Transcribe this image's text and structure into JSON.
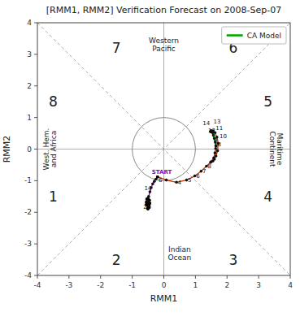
{
  "chart_data": {
    "type": "line",
    "title": "[RMM1, RMM2] Verification Forecast on 2008-Sep-07",
    "x_label": "RMM1",
    "y_label": "RMM2",
    "xlim": [
      -4,
      4
    ],
    "ylim": [
      -4,
      4
    ],
    "xticks": [
      -4,
      -3,
      -2,
      -1,
      0,
      1,
      2,
      3,
      4
    ],
    "yticks": [
      -4,
      -3,
      -2,
      -1,
      0,
      1,
      2,
      3,
      4
    ],
    "grid": false,
    "legend": "upper right",
    "circle_radius": 1.0,
    "series": [
      {
        "type": "scatter",
        "color": "black",
        "marker": "dot",
        "x": [
          -0.5,
          -0.55,
          -0.48,
          -0.52,
          -0.45,
          -0.53,
          -0.47,
          -0.5,
          -0.54,
          -0.46,
          -0.49,
          -0.51,
          -0.44,
          -0.56,
          -0.48,
          -0.52,
          -0.46,
          -0.5,
          -0.53,
          -0.47,
          -0.48,
          -0.5,
          -0.55,
          -0.46,
          -0.52
        ],
        "values": [
          -1.65,
          -1.7,
          -1.6,
          -1.75,
          -1.62,
          -1.68,
          -1.72,
          -1.55,
          -1.58,
          -1.8,
          -1.63,
          -1.67,
          -1.71,
          -1.76,
          -1.82,
          -1.88,
          -1.85,
          -1.9,
          -1.78,
          -1.73,
          -1.69,
          -1.64,
          -1.66,
          -1.74,
          -1.79
        ]
      },
      {
        "type": "line",
        "color": "#9900cc",
        "marker": "dot",
        "x": [
          -0.5,
          -0.48,
          -0.44,
          -0.4,
          -0.35,
          -0.3,
          -0.25,
          -0.2
        ],
        "values": [
          -1.65,
          -1.5,
          -1.35,
          -1.22,
          -1.1,
          -1.02,
          -0.95,
          -0.88
        ]
      },
      {
        "type": "line",
        "color": "#cc3300",
        "marker": "dot",
        "x": [
          -0.2,
          0.08,
          0.4,
          0.72,
          0.98,
          1.18,
          1.35,
          1.48,
          1.58,
          1.62,
          1.64,
          1.65
        ],
        "values": [
          -0.88,
          -0.98,
          -1.05,
          -0.98,
          -0.85,
          -0.7,
          -0.54,
          -0.42,
          -0.28,
          -0.12,
          0.02,
          0.1
        ]
      },
      {
        "type": "line",
        "name": "CA Model",
        "color": "#00aa00",
        "marker": "dot",
        "x": [
          1.65,
          1.63,
          1.6,
          1.57,
          1.54,
          1.51,
          1.49,
          1.48
        ],
        "values": [
          0.1,
          0.22,
          0.34,
          0.44,
          0.52,
          0.57,
          0.58,
          0.55
        ]
      },
      {
        "type": "line",
        "color": "#cc3300",
        "marker": "dot",
        "x": [
          1.48,
          1.5,
          1.56,
          1.62,
          1.68,
          1.72,
          1.7,
          1.65,
          1.6,
          1.55,
          1.5
        ],
        "values": [
          0.55,
          0.58,
          0.58,
          0.52,
          0.38,
          0.18,
          -0.05,
          -0.22,
          -0.32,
          -0.38,
          -0.4
        ]
      },
      {
        "type": "scatter",
        "color": "black",
        "marker": "dot",
        "x": [
          -0.2
        ],
        "values": [
          -0.88
        ]
      }
    ],
    "annotations": [
      {
        "text": "7",
        "x": -1.5,
        "y": 3.2
      },
      {
        "text": "6",
        "x": 2.2,
        "y": 3.2
      },
      {
        "text": "8",
        "x": -3.5,
        "y": 1.5
      },
      {
        "text": "5",
        "x": 3.3,
        "y": 1.5
      },
      {
        "text": "1",
        "x": -3.5,
        "y": -1.5
      },
      {
        "text": "4",
        "x": 3.3,
        "y": -1.5
      },
      {
        "text": "2",
        "x": -1.5,
        "y": -3.5
      },
      {
        "text": "3",
        "x": 2.2,
        "y": -3.5
      },
      {
        "text": "Western\nPacific",
        "x": 0.0,
        "y": 3.3
      },
      {
        "text": "Maritime\nContinent",
        "x": 3.55,
        "y": 0.0
      },
      {
        "text": "Indian\nOcean",
        "x": 0.5,
        "y": -3.3
      },
      {
        "text": "West. Hem.\nand Africa",
        "x": -3.6,
        "y": 0.0
      }
    ],
    "point_labels": [
      {
        "text": "14",
        "x": -0.62,
        "y": -1.3
      },
      {
        "text": "25",
        "x": -0.65,
        "y": -1.9
      },
      {
        "text": "START",
        "x": -0.38,
        "y": -0.78,
        "color": "#9900cc"
      },
      {
        "text": "6",
        "x": -0.17,
        "y": -0.97
      },
      {
        "text": "4",
        "x": 0.44,
        "y": -1.11
      },
      {
        "text": "5",
        "x": 0.76,
        "y": -1.04
      },
      {
        "text": "6",
        "x": 1.02,
        "y": -0.91
      },
      {
        "text": "7",
        "x": 1.22,
        "y": -0.76
      },
      {
        "text": "8",
        "x": 1.39,
        "y": -0.6
      },
      {
        "text": "8",
        "x": 1.7,
        "y": 0.1
      },
      {
        "text": "9",
        "x": 1.68,
        "y": 0.22
      },
      {
        "text": "10",
        "x": 1.66,
        "y": 0.34
      },
      {
        "text": "11",
        "x": 1.64,
        "y": 0.44
      },
      {
        "text": "12",
        "x": 1.61,
        "y": 0.52
      },
      {
        "text": "13",
        "x": 1.57,
        "y": 0.57
      },
      {
        "text": "14",
        "x": 1.54,
        "y": 0.6
      }
    ]
  }
}
